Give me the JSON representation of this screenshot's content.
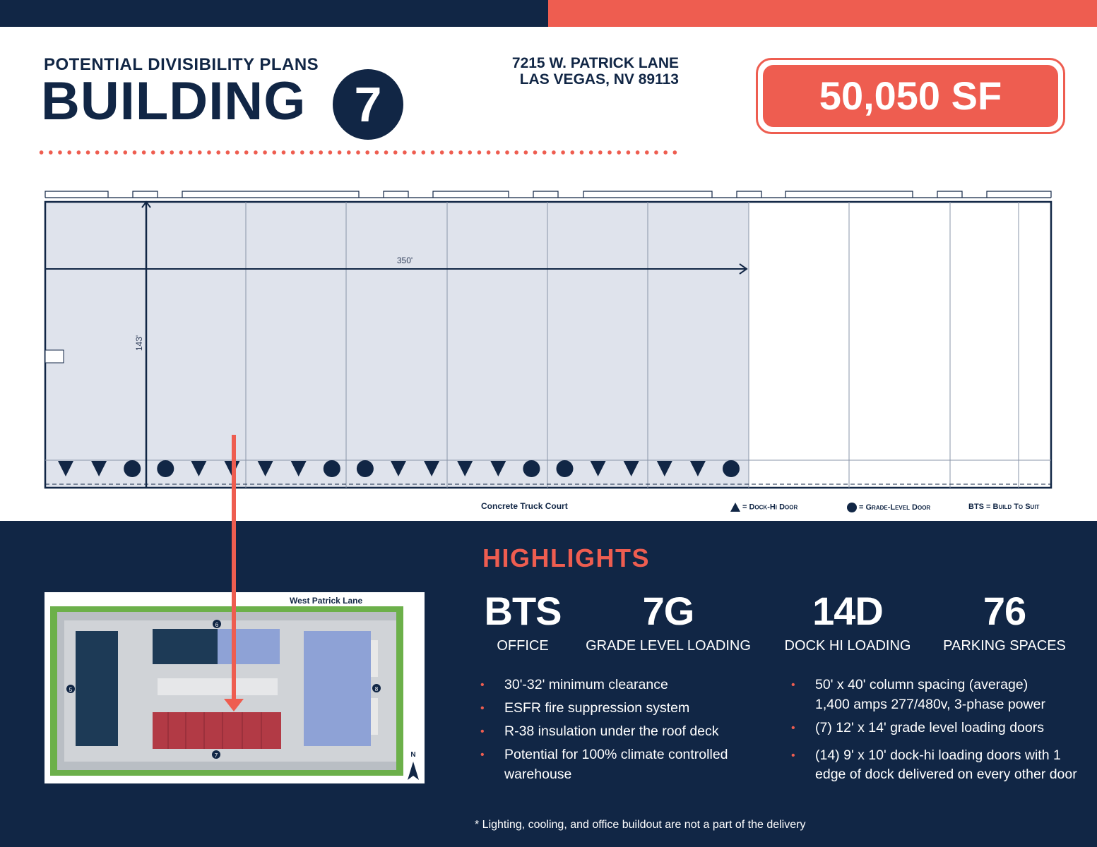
{
  "header": {
    "subtitle": "POTENTIAL DIVISIBILITY PLANS",
    "title": "BUILDING",
    "building_number": "7",
    "address_line1": "7215 W. PATRICK LANE",
    "address_line2": "LAS VEGAS, NV 89113",
    "square_feet": "50,050 SF"
  },
  "colors": {
    "navy": "#112645",
    "coral": "#ee5d50",
    "plan_fill": "#dfe3ec",
    "site_red": "#b23a45",
    "site_blue": "#8ea2d6"
  },
  "floor_plan": {
    "width_label": "350'",
    "depth_label": "143'",
    "caption": "Concrete Truck Court",
    "doors": [
      "dock",
      "dock",
      "grade",
      "grade",
      "dock",
      "dock",
      "dock",
      "dock",
      "grade",
      "grade",
      "dock",
      "dock",
      "dock",
      "dock",
      "grade",
      "grade",
      "dock",
      "dock",
      "dock",
      "dock",
      "grade"
    ]
  },
  "legend": {
    "dock_hi": "= Dock-Hi Door",
    "grade_level": "= Grade-Level Door",
    "bts": "BTS = Build To Suit"
  },
  "site_plan": {
    "street": "West Patrick Lane",
    "building_labels": [
      "5",
      "6",
      "7",
      "8"
    ],
    "north": "N"
  },
  "highlights": {
    "title": "HIGHLIGHTS",
    "stats": [
      {
        "value": "BTS",
        "label": "OFFICE"
      },
      {
        "value": "7G",
        "label": "GRADE LEVEL LOADING"
      },
      {
        "value": "14D",
        "label": "DOCK HI LOADING"
      },
      {
        "value": "76",
        "label": "PARKING SPACES"
      }
    ],
    "left_list": [
      "30'-32' minimum clearance",
      "ESFR fire suppression system",
      "R-38 insulation under the roof deck",
      "Potential for 100% climate controlled warehouse"
    ],
    "right_list": [
      "50' x 40' column spacing (average)",
      "1,400 amps 277/480v, 3-phase power",
      "(7) 12' x 14' grade level loading doors",
      "(14) 9' x 10' dock-hi loading doors with 1 edge of dock delivered on every other door"
    ],
    "footnote": "* Lighting, cooling, and office buildout are not a part of the delivery"
  }
}
